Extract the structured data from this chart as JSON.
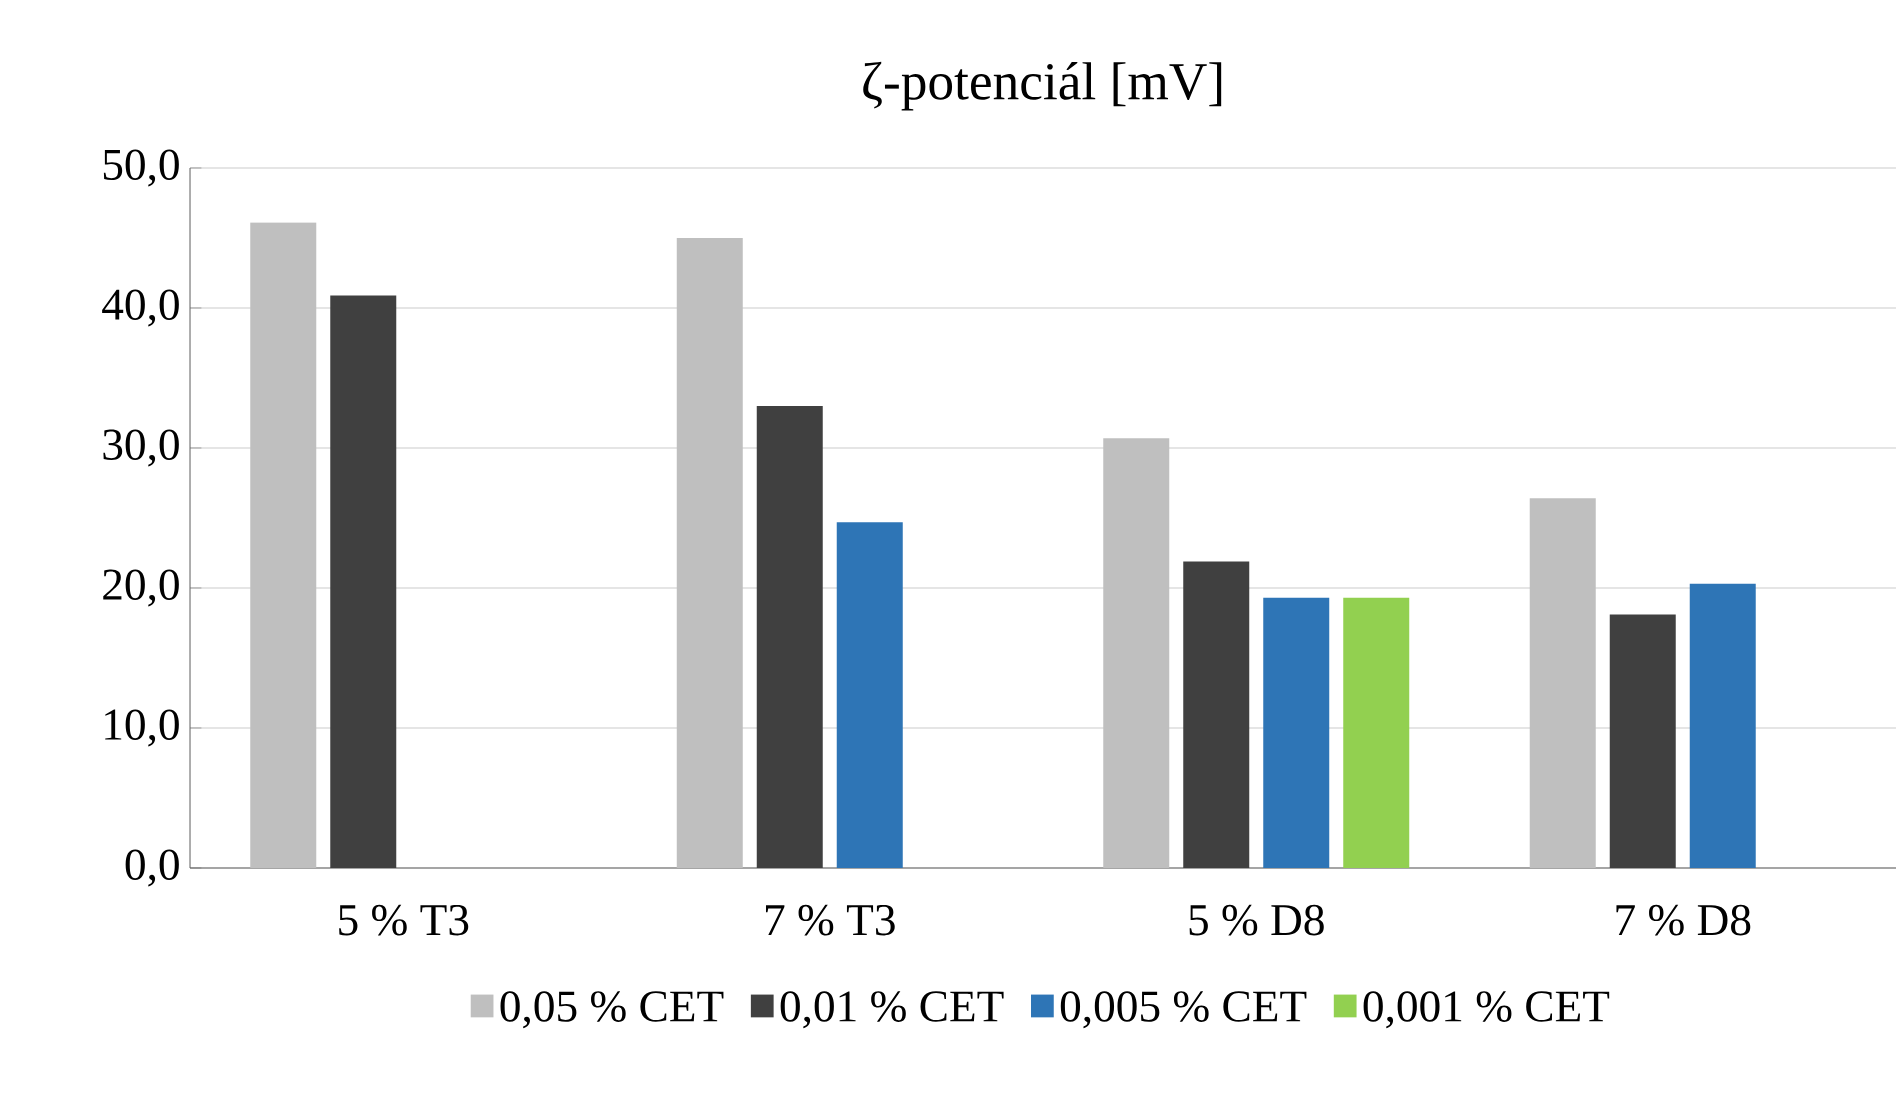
{
  "chart_data": {
    "type": "bar",
    "title": "ζ-potenciál [mV]",
    "categories": [
      "5 % T3",
      "7 % T3",
      "5 % D8",
      "7 % D8"
    ],
    "series": [
      {
        "name": "0,05 % CET",
        "color": "#bfbfbf",
        "values": [
          46.1,
          45.0,
          30.7,
          26.4
        ]
      },
      {
        "name": "0,01 % CET",
        "color": "#404040",
        "values": [
          40.9,
          33.0,
          21.9,
          18.1
        ]
      },
      {
        "name": "0,005 % CET",
        "color": "#2e75b6",
        "values": [
          null,
          24.7,
          19.3,
          20.3
        ]
      },
      {
        "name": "0,001 % CET",
        "color": "#92d050",
        "values": [
          null,
          null,
          19.3,
          null
        ]
      }
    ],
    "ylim": [
      0,
      50
    ],
    "yticks": [
      {
        "value": 0,
        "label": "0,0"
      },
      {
        "value": 10,
        "label": "10,0"
      },
      {
        "value": 20,
        "label": "20,0"
      },
      {
        "value": 30,
        "label": "30,0"
      },
      {
        "value": 40,
        "label": "40,0"
      },
      {
        "value": 50,
        "label": "50,0"
      }
    ],
    "grid": "y",
    "legend": "bottom"
  }
}
